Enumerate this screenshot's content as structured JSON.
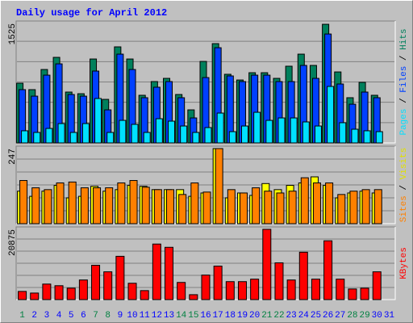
{
  "legend_separator": " / ",
  "chart_data": [
    {
      "type": "bar",
      "title": "Daily usage for April 2012",
      "ylim": [
        0,
        1525
      ],
      "yticks": [
        1525
      ],
      "series": [
        {
          "name": "Hits",
          "color": "#00805c",
          "values": [
            762,
            680,
            937,
            1092,
            649,
            628,
            1071,
            556,
            1226,
            1071,
            608,
            783,
            824,
            618,
            422,
            1040,
            1267,
            876,
            803,
            896,
            896,
            824,
            979,
            1133,
            989,
            1514,
            906,
            577,
            773,
            608,
            null
          ]
        },
        {
          "name": "Files",
          "color": "#0040ff",
          "values": [
            680,
            597,
            865,
            1009,
            618,
            597,
            917,
            422,
            1133,
            937,
            577,
            711,
            783,
            577,
            319,
            834,
            1215,
            855,
            783,
            865,
            865,
            783,
            783,
            989,
            824,
            1390,
            752,
            494,
            649,
            577,
            null
          ]
        },
        {
          "name": "Pages",
          "color": "#00e0ff",
          "values": [
            155,
            134,
            185,
            247,
            134,
            247,
            567,
            134,
            288,
            237,
            134,
            309,
            278,
            216,
            134,
            196,
            381,
            144,
            216,
            391,
            288,
            319,
            319,
            268,
            216,
            721,
            258,
            175,
            155,
            144,
            null
          ]
        }
      ]
    },
    {
      "type": "bar",
      "ylim": [
        0,
        247
      ],
      "yticks": [
        247
      ],
      "series": [
        {
          "name": "Visits",
          "color": "#ffff00",
          "values": [
            107,
            90,
            107,
            126,
            85,
            90,
            123,
            107,
            112,
            126,
            123,
            112,
            112,
            112,
            90,
            101,
            247,
            85,
            101,
            93,
            132,
            112,
            126,
            134,
            154,
            126,
            85,
            101,
            107,
            101,
            null
          ]
        },
        {
          "name": "Sites",
          "color": "#ff8000",
          "values": [
            142,
            118,
            112,
            134,
            137,
            118,
            118,
            118,
            134,
            142,
            120,
            112,
            112,
            96,
            134,
            104,
            247,
            112,
            101,
            118,
            107,
            101,
            107,
            151,
            134,
            134,
            96,
            107,
            112,
            112,
            null
          ]
        }
      ]
    },
    {
      "type": "bar",
      "ylim": [
        0,
        20875
      ],
      "yticks": [
        20875
      ],
      "categories": [
        "1",
        "2",
        "3",
        "4",
        "5",
        "6",
        "7",
        "8",
        "9",
        "10",
        "11",
        "12",
        "13",
        "14",
        "15",
        "16",
        "17",
        "18",
        "19",
        "20",
        "21",
        "22",
        "23",
        "24",
        "25",
        "26",
        "27",
        "28",
        "29",
        "30",
        "31"
      ],
      "category_colors": [
        "#008040",
        "#0000ff",
        "#0000ff",
        "#0000ff",
        "#0000ff",
        "#0000ff",
        "#008040",
        "#008040",
        "#0000ff",
        "#0000ff",
        "#0000ff",
        "#0000ff",
        "#0000ff",
        "#008040",
        "#008040",
        "#0000ff",
        "#0000ff",
        "#0000ff",
        "#0000ff",
        "#0000ff",
        "#008040",
        "#008040",
        "#0000ff",
        "#0000ff",
        "#0000ff",
        "#0000ff",
        "#0000ff",
        "#008040",
        "#008040",
        "#0000ff",
        "#0000ff"
      ],
      "series": [
        {
          "name": "KBytes",
          "color": "#ff0000",
          "values": [
            2427,
            1942,
            4611,
            4126,
            3398,
            5825,
            10193,
            8252,
            12863,
            4854,
            2670,
            16503,
            15533,
            5097,
            1456,
            7281,
            9951,
            5339,
            5339,
            6068,
            20875,
            10922,
            5825,
            14077,
            6068,
            17474,
            6068,
            3155,
            3398,
            8252,
            null
          ]
        }
      ]
    }
  ]
}
